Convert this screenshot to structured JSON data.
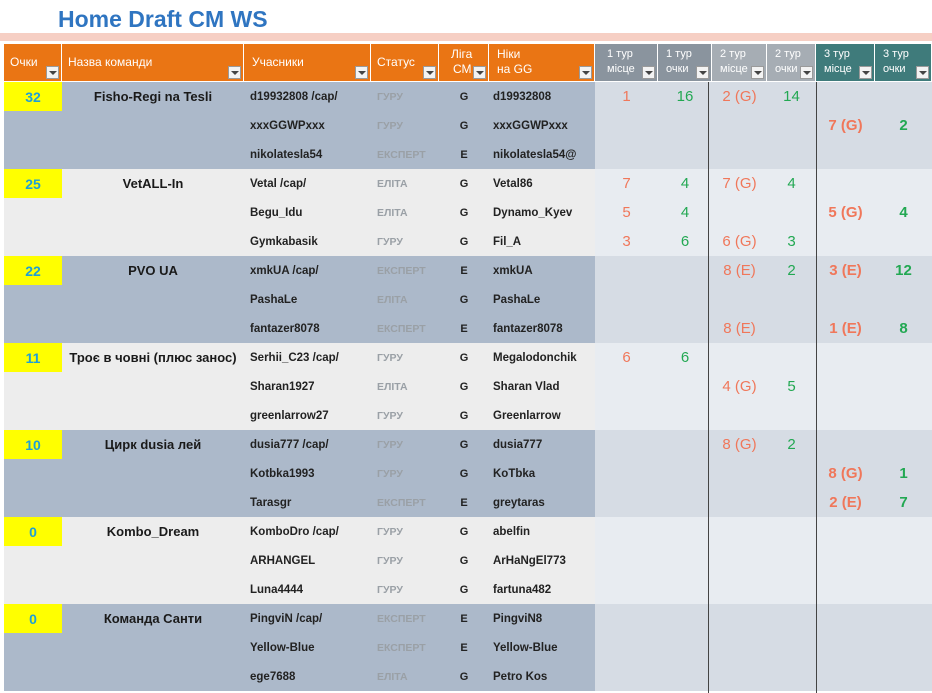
{
  "title": "Home Draft CM WS",
  "headers": {
    "points": "Очки",
    "team": "Назва команди",
    "members": "Учасники",
    "status": "Статус",
    "league_l1": "Ліга",
    "league_l2": "СМ",
    "nick_l1": "Ніки",
    "nick_l2": "на GG",
    "r1p_l1": "1  тур",
    "r1p_l2": "місце",
    "r1s_l1": "1 тур",
    "r1s_l2": "очки",
    "r2p_l1": "2 тур",
    "r2p_l2": "місце",
    "r2s_l1": "2 тур",
    "r2s_l2": "очки",
    "r3p_l1": "3 тур",
    "r3p_l2": "місце",
    "r3s_l1": "3 тур",
    "r3s_l2": "очки"
  },
  "rows": [
    {
      "points": "32",
      "team": "Fisho-Regi na Tesli",
      "member": "d19932808 /cap/",
      "status": "ГУРУ",
      "liga": "G",
      "nick": "d19932808",
      "r1p": "1",
      "r1s": "16",
      "r2p": "2 (G)",
      "r2s": "14",
      "r3p": "",
      "r3s": ""
    },
    {
      "points": "",
      "team": "",
      "member": "xxxGGWPxxx",
      "status": "ГУРУ",
      "liga": "G",
      "nick": "xxxGGWPxxx",
      "r1p": "",
      "r1s": "",
      "r2p": "",
      "r2s": "",
      "r3p": "7 (G)",
      "r3s": "2"
    },
    {
      "points": "",
      "team": "",
      "member": "nikolatesla54",
      "status": "ЕКСПЕРТ",
      "liga": "E",
      "nick": "nikolatesla54@",
      "r1p": "",
      "r1s": "",
      "r2p": "",
      "r2s": "",
      "r3p": "",
      "r3s": ""
    },
    {
      "points": "25",
      "team": "VetALL-In",
      "member": "Vetal /cap/",
      "status": "ЕЛІТА",
      "liga": "G",
      "nick": "Vetal86",
      "r1p": "7",
      "r1s": "4",
      "r2p": "7 (G)",
      "r2s": "4",
      "r3p": "",
      "r3s": ""
    },
    {
      "points": "",
      "team": "",
      "member": "Begu_Idu",
      "status": "ЕЛІТА",
      "liga": "G",
      "nick": "Dynamo_Kyev",
      "r1p": "5",
      "r1s": "4",
      "r2p": "",
      "r2s": "",
      "r3p": "5 (G)",
      "r3s": "4"
    },
    {
      "points": "",
      "team": "",
      "member": "Gymkabasik",
      "status": "ГУРУ",
      "liga": "G",
      "nick": "Fil_A",
      "r1p": "3",
      "r1s": "6",
      "r2p": "6 (G)",
      "r2s": "3",
      "r3p": "",
      "r3s": ""
    },
    {
      "points": "22",
      "team": "PVO UA",
      "member": "xmkUA /cap/",
      "status": "ЕКСПЕРТ",
      "liga": "E",
      "nick": "xmkUA",
      "r1p": "",
      "r1s": "",
      "r2p": "8 (E)",
      "r2s": "2",
      "r3p": "3 (E)",
      "r3s": "12"
    },
    {
      "points": "",
      "team": "",
      "member": "PashaLe",
      "status": "ЕЛІТА",
      "liga": "G",
      "nick": "PashaLe",
      "r1p": "",
      "r1s": "",
      "r2p": "",
      "r2s": "",
      "r3p": "",
      "r3s": ""
    },
    {
      "points": "",
      "team": "",
      "member": "fantazer8078",
      "status": "ЕКСПЕРТ",
      "liga": "E",
      "nick": "fantazer8078",
      "r1p": "",
      "r1s": "",
      "r2p": "8 (E)",
      "r2s": "",
      "r3p": "1 (E)",
      "r3s": "8"
    },
    {
      "points": "11",
      "team": "Троє в човні (плюс занос)",
      "member": "Serhii_C23 /cap/",
      "status": "ГУРУ",
      "liga": "G",
      "nick": "Megalodonchik",
      "r1p": "6",
      "r1s": "6",
      "r2p": "",
      "r2s": "",
      "r3p": "",
      "r3s": ""
    },
    {
      "points": "",
      "team": "",
      "member": "Sharan1927",
      "status": "ЕЛІТА",
      "liga": "G",
      "nick": "Sharan Vlad",
      "r1p": "",
      "r1s": "",
      "r2p": "4 (G)",
      "r2s": "5",
      "r3p": "",
      "r3s": ""
    },
    {
      "points": "",
      "team": "",
      "member": "greenlarrow27",
      "status": "ГУРУ",
      "liga": "G",
      "nick": "Greenlarrow",
      "r1p": "",
      "r1s": "",
      "r2p": "",
      "r2s": "",
      "r3p": "",
      "r3s": ""
    },
    {
      "points": "10",
      "team": "Цирк dusia лей",
      "member": "dusia777 /cap/",
      "status": "ГУРУ",
      "liga": "G",
      "nick": "dusia777",
      "r1p": "",
      "r1s": "",
      "r2p": "8 (G)",
      "r2s": "2",
      "r3p": "",
      "r3s": ""
    },
    {
      "points": "",
      "team": "",
      "member": "Kotbka1993",
      "status": "ГУРУ",
      "liga": "G",
      "nick": "KoTbka",
      "r1p": "",
      "r1s": "",
      "r2p": "",
      "r2s": "",
      "r3p": "8 (G)",
      "r3s": "1"
    },
    {
      "points": "",
      "team": "",
      "member": "Tarasgr",
      "status": "ЕКСПЕРТ",
      "liga": "E",
      "nick": "greytaras",
      "r1p": "",
      "r1s": "",
      "r2p": "",
      "r2s": "",
      "r3p": "2 (E)",
      "r3s": "7"
    },
    {
      "points": "0",
      "team": "Kombo_Dream",
      "member": "KomboDro /cap/",
      "status": "ГУРУ",
      "liga": "G",
      "nick": "abelfin",
      "r1p": "",
      "r1s": "",
      "r2p": "",
      "r2s": "",
      "r3p": "",
      "r3s": ""
    },
    {
      "points": "",
      "team": "",
      "member": "ARHANGEL",
      "status": "ГУРУ",
      "liga": "G",
      "nick": "ArHaNgEl773",
      "r1p": "",
      "r1s": "",
      "r2p": "",
      "r2s": "",
      "r3p": "",
      "r3s": ""
    },
    {
      "points": "",
      "team": "",
      "member": "Luna4444",
      "status": "ГУРУ",
      "liga": "G",
      "nick": "fartuna482",
      "r1p": "",
      "r1s": "",
      "r2p": "",
      "r2s": "",
      "r3p": "",
      "r3s": ""
    },
    {
      "points": "0",
      "team": "Команда Санти",
      "member": "PingviN /cap/",
      "status": "ЕКСПЕРТ",
      "liga": "E",
      "nick": "PingviN8",
      "r1p": "",
      "r1s": "",
      "r2p": "",
      "r2s": "",
      "r3p": "",
      "r3s": ""
    },
    {
      "points": "",
      "team": "",
      "member": "Yellow-Blue",
      "status": "ЕКСПЕРТ",
      "liga": "E",
      "nick": "Yellow-Blue",
      "r1p": "",
      "r1s": "",
      "r2p": "",
      "r2s": "",
      "r3p": "",
      "r3s": ""
    },
    {
      "points": "",
      "team": "",
      "member": "ege7688",
      "status": "ЕЛІТА",
      "liga": "G",
      "nick": "Petro Kos",
      "r1p": "",
      "r1s": "",
      "r2p": "",
      "r2s": "",
      "r3p": "",
      "r3s": ""
    }
  ],
  "colors": {
    "accent_header": "#ea7514",
    "round_header_grey": "#8a949e",
    "round_header_teal": "#3f7b7b",
    "row_dark": "#acb9ca",
    "row_light": "#ededed",
    "round_bg_dark": "#d6dce4",
    "round_bg_light": "#e8ecf1",
    "points_highlight": "#ffff00",
    "place_text": "#f0775a",
    "score_text": "#22a852"
  }
}
